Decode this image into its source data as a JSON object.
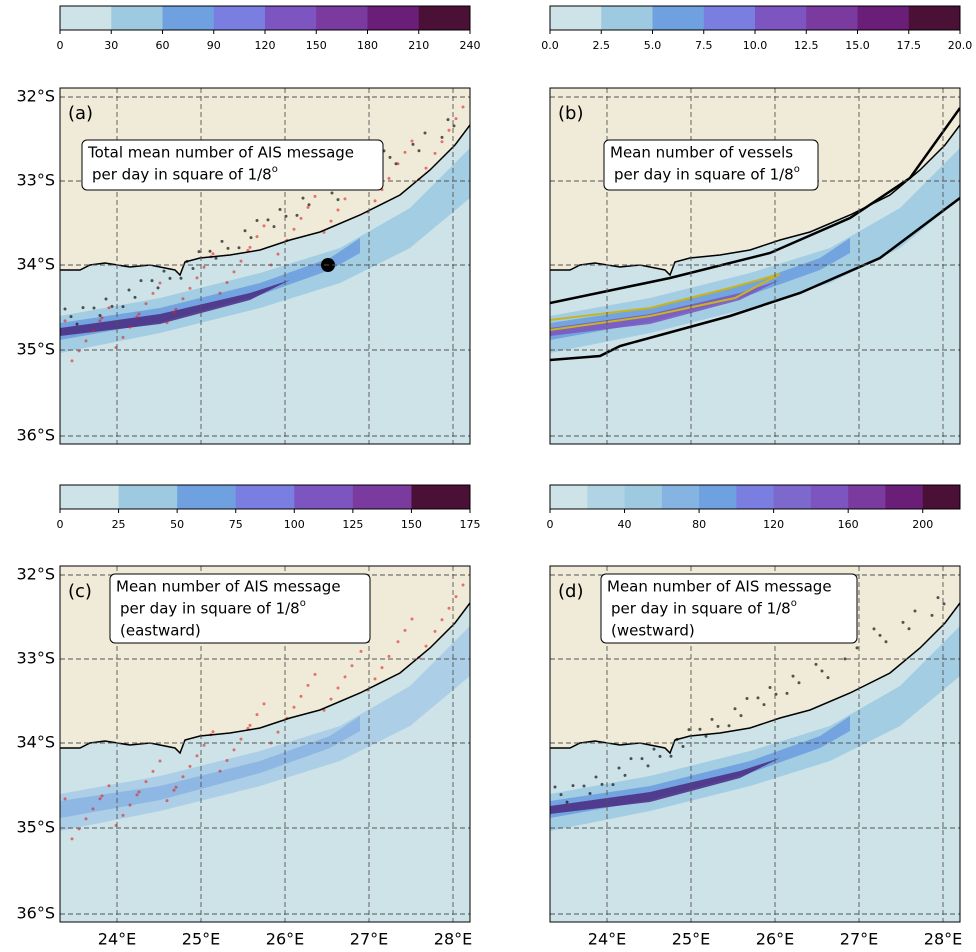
{
  "panels": [
    {
      "label": "(a)",
      "annotation": [
        "Total mean number of AIS message",
        "per day in square of 1/8"
      ],
      "superscript": "o",
      "colorbar": {
        "lim": [
          0,
          240
        ],
        "ticks": [
          0,
          30,
          60,
          90,
          120,
          150,
          180,
          210,
          240
        ],
        "colors": [
          "#cde3e8",
          "#9ecae1",
          "#6fa0df",
          "#7a7ee0",
          "#7d55c0",
          "#7a3a9e",
          "#6a1e78",
          "#4a1035"
        ]
      }
    },
    {
      "label": "(b)",
      "annotation": [
        "Mean number of vessels",
        "per day in square of 1/8"
      ],
      "superscript": "o",
      "colorbar": {
        "lim": [
          0,
          20
        ],
        "ticks": [
          {
            "value": 0,
            "label": "0.0"
          },
          2.5,
          {
            "value": 5,
            "label": "5.0"
          },
          7.5,
          {
            "value": 10,
            "label": "10.0"
          },
          12.5,
          {
            "value": 15,
            "label": "15.0"
          },
          17.5,
          {
            "value": 20,
            "label": "20.0"
          }
        ],
        "colors": [
          "#cde3e8",
          "#9ecae1",
          "#6fa0df",
          "#7a7ee0",
          "#7d55c0",
          "#7a3a9e",
          "#6a1e78",
          "#4a1035"
        ]
      }
    },
    {
      "label": "(c)",
      "annotation": [
        "Mean number of AIS message",
        "per day in square of 1/8",
        "(eastward)"
      ],
      "superscript": "o",
      "colorbar": {
        "lim": [
          0,
          175
        ],
        "ticks": [
          0,
          25,
          50,
          75,
          100,
          125,
          150,
          175
        ],
        "colors": [
          "#cde3e8",
          "#9ecae1",
          "#6fa0df",
          "#7a7ee0",
          "#7d55c0",
          "#7a3a9e",
          "#4a1035"
        ]
      }
    },
    {
      "label": "(d)",
      "annotation": [
        "Mean number of AIS message",
        "per day in square of 1/8",
        "(westward)"
      ],
      "superscript": "o",
      "colorbar": {
        "lim": [
          0,
          220
        ],
        "ticks": [
          0,
          40,
          80,
          120,
          160,
          200
        ],
        "colors": [
          "#cde3e8",
          "#b0d4e4",
          "#9ecae1",
          "#86b4e2",
          "#6fa0df",
          "#7a7ee0",
          "#7d68cc",
          "#7d55c0",
          "#7a3a9e",
          "#6a1e78",
          "#4a1035"
        ]
      }
    }
  ],
  "lat_labels": [
    "32°S",
    "33°S",
    "34°S",
    "35°S",
    "36°S"
  ],
  "lon_labels": [
    "24°E",
    "25°E",
    "26°E",
    "27°E",
    "28°E"
  ]
}
